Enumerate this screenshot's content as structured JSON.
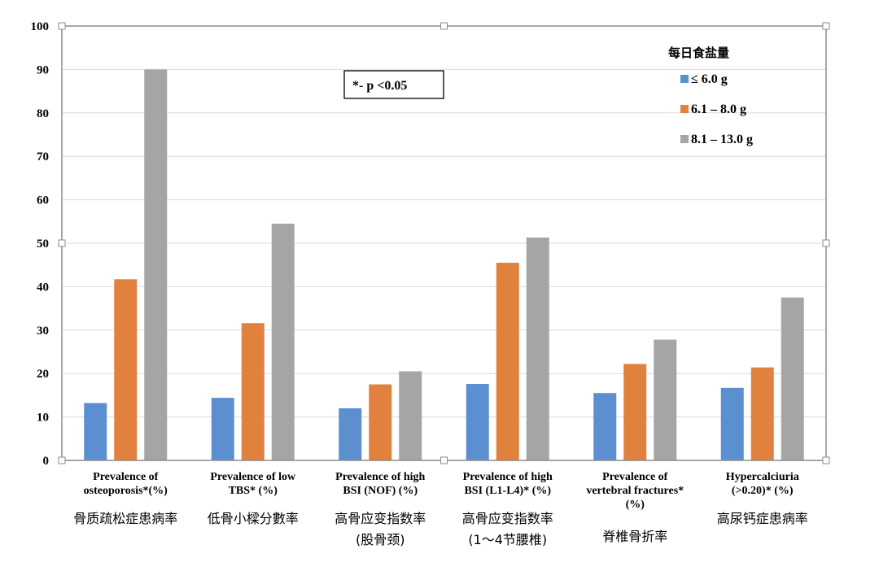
{
  "chart_data": {
    "type": "bar",
    "categories": [
      {
        "en": [
          "Prevalence of",
          "osteoporosis*(%)"
        ],
        "zh": [
          "骨质疏松症患病率"
        ]
      },
      {
        "en": [
          "Prevalence of low",
          "TBS* (%)"
        ],
        "zh": [
          "低骨小樑分數率"
        ]
      },
      {
        "en": [
          "Prevalence of high",
          "BSI (NOF) (%)"
        ],
        "zh": [
          "高骨应变指数率",
          "(股骨颈)"
        ]
      },
      {
        "en": [
          "Prevalence of high",
          "BSI (L1-L4)* (%)"
        ],
        "zh": [
          "高骨应变指数率",
          "(1～4节腰椎)"
        ]
      },
      {
        "en": [
          "Prevalence of",
          "vertebral fractures*",
          "(%)"
        ],
        "zh": [
          "脊椎骨折率"
        ]
      },
      {
        "en": [
          "Hypercalciuria",
          "(>0.20)* (%)"
        ],
        "zh": [
          "高尿钙症患病率"
        ]
      }
    ],
    "series": [
      {
        "name": "≤ 6.0 g",
        "color": "#5B8FD0",
        "values": [
          13.2,
          14.4,
          12.0,
          17.6,
          15.5,
          16.7
        ]
      },
      {
        "name": "6.1 – 8.0 g",
        "color": "#E0813E",
        "values": [
          41.7,
          31.6,
          17.5,
          45.5,
          22.2,
          21.4
        ]
      },
      {
        "name": "8.1 – 13.0 g",
        "color": "#A5A5A5",
        "values": [
          90.0,
          54.5,
          20.5,
          51.3,
          27.8,
          37.5
        ]
      }
    ],
    "ylim": [
      0,
      100
    ],
    "yticks": [
      0,
      10,
      20,
      30,
      40,
      50,
      60,
      70,
      80,
      90,
      100
    ],
    "grid": true,
    "legend": {
      "title": "每日食盐量",
      "position": "top-right"
    },
    "annotation": "*- p <0.05"
  }
}
